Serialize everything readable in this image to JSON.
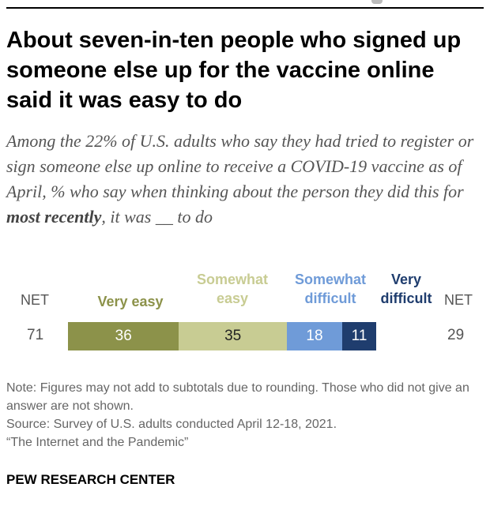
{
  "title": "About seven-in-ten people who signed up someone else up for the vaccine online said it was easy to do",
  "subtitle_pre": "Among the 22% of U.S. adults who say they had tried to register or sign someone else up online to receive a COVID-19 vaccine as of April, % who say when thinking about the person they did this for ",
  "subtitle_bold": "most recently",
  "subtitle_post": ", it was __ to do",
  "chart_data": {
    "type": "bar",
    "orientation": "horizontal-stacked",
    "series": [
      {
        "name": "Very easy",
        "values": [
          36
        ],
        "color": "#8c924a"
      },
      {
        "name": "Somewhat easy",
        "values": [
          35
        ],
        "color": "#c8cc93"
      },
      {
        "name": "Somewhat difficult",
        "values": [
          18
        ],
        "color": "#6f9bd8"
      },
      {
        "name": "Very difficult",
        "values": [
          11
        ],
        "color": "#1f3d6e"
      }
    ],
    "net_left": {
      "label": "NET",
      "value": 71
    },
    "net_right": {
      "label": "NET",
      "value": 29
    }
  },
  "labels": {
    "very_easy": "Very easy",
    "somewhat_easy_1": "Somewhat",
    "somewhat_easy_2": "easy",
    "somewhat_difficult_1": "Somewhat",
    "somewhat_difficult_2": "difficult",
    "very_difficult_1": "Very",
    "very_difficult_2": "difficult"
  },
  "note": "Note: Figures may not add to subtotals due to rounding. Those who did not give an answer are not shown.",
  "source": "Source: Survey of U.S. adults conducted April 12-18, 2021.",
  "report": "“The Internet and the Pandemic”",
  "brand": "PEW RESEARCH CENTER"
}
